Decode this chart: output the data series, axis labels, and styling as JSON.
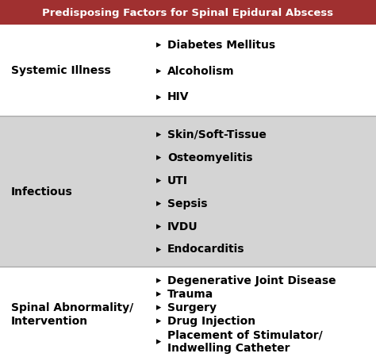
{
  "title": "Predisposing Factors for Spinal Epidural Abscess",
  "title_bg": "#a03030",
  "title_color": "#ffffff",
  "title_fontsize": 9.5,
  "category_fontsize": 10,
  "item_fontsize": 10,
  "bullet": "▸",
  "row_border_color": "#aaaaaa",
  "categories": [
    {
      "name": "Systemic Illness",
      "items": [
        "Diabetes Mellitus",
        "Alcoholism",
        "HIV"
      ],
      "bg": "#ffffff",
      "name_lines": 1
    },
    {
      "name": "Infectious",
      "items": [
        "Skin/Soft-Tissue",
        "Osteomyelitis",
        "UTI",
        "Sepsis",
        "IVDU",
        "Endocarditis"
      ],
      "bg": "#d4d4d4",
      "name_lines": 1
    },
    {
      "name": "Spinal Abnormality/\nIntervention",
      "items": [
        "Degenerative Joint Disease",
        "Trauma",
        "Surgery",
        "Drug Injection",
        "Placement of Stimulator/\nIndwelling Catheter"
      ],
      "bg": "#ffffff",
      "name_lines": 2
    }
  ]
}
